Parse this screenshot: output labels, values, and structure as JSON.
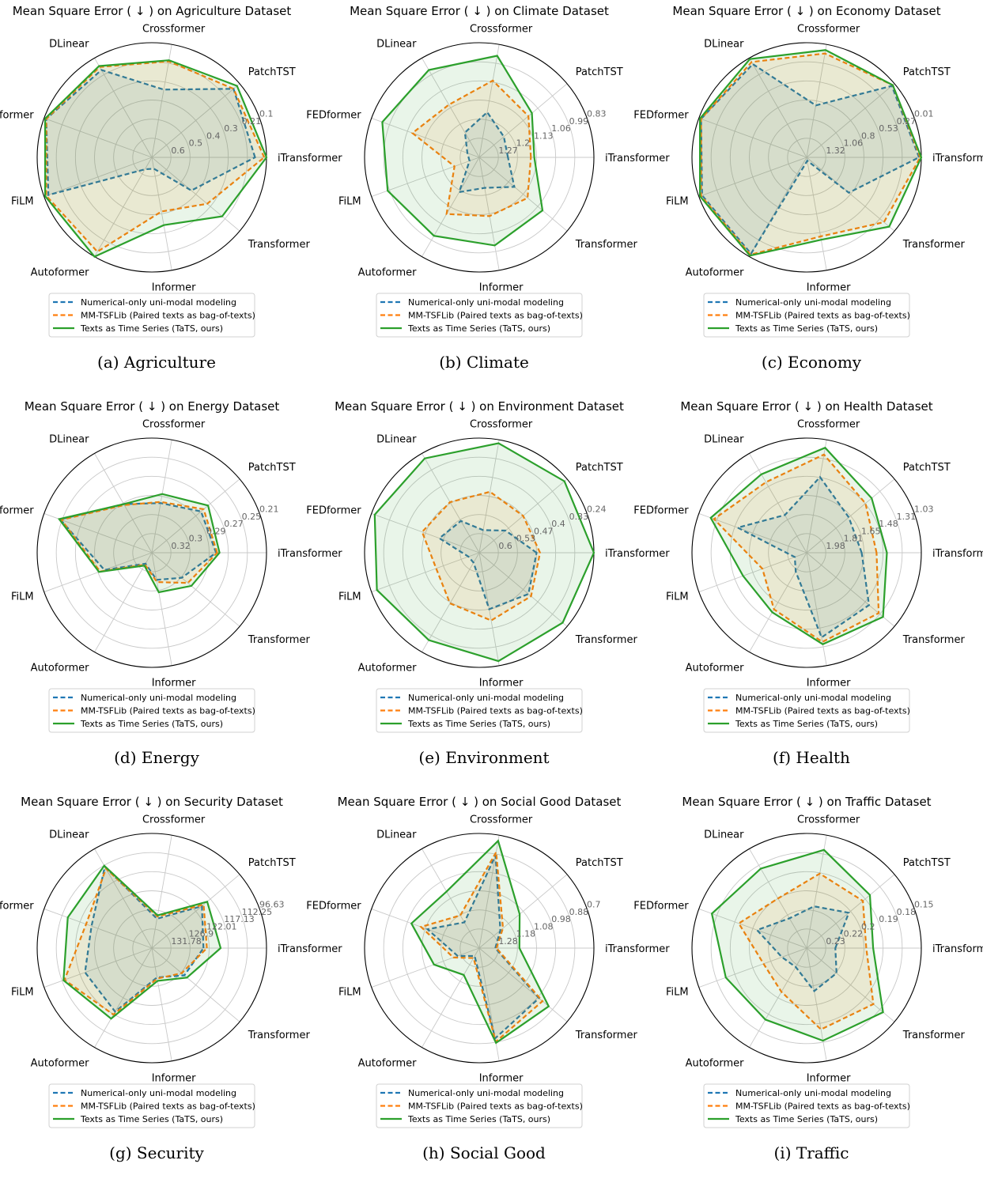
{
  "legend": {
    "items": [
      {
        "label": "Numerical-only uni-modal modeling",
        "color": "#1f77b4",
        "style": "dashed"
      },
      {
        "label": "MM-TSFLib (Paired texts as bag-of-texts)",
        "color": "#ff7f0e",
        "style": "dashed"
      },
      {
        "label": "Texts as Time Series (TaTS, ours)",
        "color": "#2ca02c",
        "style": "solid"
      }
    ]
  },
  "axes": [
    "iTransformer",
    "PatchTST",
    "Crossformer",
    "DLinear",
    "FEDformer",
    "FiLM",
    "Autoformer",
    "Informer",
    "Transformer"
  ],
  "chart_data": [
    {
      "type": "radar",
      "title": "Mean Square Error ( ↓ ) on Agriculture Dataset",
      "caption": "(a)  Agriculture",
      "radial_ticks": [
        "0.6",
        "0.5",
        "0.4",
        "0.3",
        "0.21",
        "0.1"
      ],
      "series": [
        {
          "values": [
            0.9,
            0.93,
            0.6,
            0.88,
            0.98,
            0.96,
            0.12,
            0.1,
            0.45
          ]
        },
        {
          "values": [
            0.98,
            0.93,
            0.85,
            0.91,
            0.98,
            0.98,
            0.95,
            0.48,
            0.63
          ]
        },
        {
          "values": [
            1.0,
            0.97,
            0.86,
            0.92,
            0.99,
            0.99,
            1.0,
            0.6,
            0.8
          ]
        }
      ]
    },
    {
      "type": "radar",
      "title": "Mean Square Error ( ↓ ) on Climate Dataset",
      "caption": "(b)  Climate",
      "radial_ticks": [
        "1.27",
        "1.2",
        "1.13",
        "1.06",
        "0.99",
        "0.83"
      ],
      "series": [
        {
          "values": [
            0.25,
            0.28,
            0.4,
            0.25,
            0.11,
            0.09,
            0.35,
            0.27,
            0.4
          ]
        },
        {
          "values": [
            0.45,
            0.56,
            0.68,
            0.53,
            0.62,
            0.23,
            0.57,
            0.52,
            0.55
          ]
        },
        {
          "values": [
            0.48,
            0.6,
            0.9,
            0.88,
            0.9,
            0.85,
            0.79,
            0.78,
            0.72
          ]
        }
      ]
    },
    {
      "type": "radar",
      "title": "Mean Square Error ( ↓ ) on Economy Dataset",
      "caption": "(c)  Economy",
      "radial_ticks": [
        "1.32",
        "1.06",
        "0.8",
        "0.53",
        "0.27",
        "0.01"
      ],
      "series": [
        {
          "values": [
            0.98,
            0.97,
            0.46,
            0.94,
            0.98,
            0.97,
            0.97,
            0.03,
            0.48
          ]
        },
        {
          "values": [
            0.99,
            0.98,
            0.92,
            0.96,
            0.98,
            0.98,
            0.98,
            0.7,
            0.88
          ]
        },
        {
          "values": [
            1.0,
            0.98,
            0.95,
            0.99,
            0.99,
            0.99,
            0.99,
            0.73,
            0.94
          ]
        }
      ]
    },
    {
      "type": "radar",
      "title": "Mean Square Error ( ↓ ) on Energy Dataset",
      "caption": "(d)  Energy",
      "radial_ticks": [
        "0.32",
        "0.3",
        "0.29",
        "0.27",
        "0.25",
        "0.21"
      ],
      "series": [
        {
          "values": [
            0.56,
            0.56,
            0.44,
            0.49,
            0.85,
            0.44,
            0.11,
            0.24,
            0.34
          ]
        },
        {
          "values": [
            0.57,
            0.59,
            0.45,
            0.48,
            0.84,
            0.48,
            0.12,
            0.26,
            0.41
          ]
        },
        {
          "values": [
            0.59,
            0.64,
            0.52,
            0.49,
            0.86,
            0.49,
            0.13,
            0.35,
            0.45
          ]
        }
      ]
    },
    {
      "type": "radar",
      "title": "Mean Square Error ( ↓ ) on Environment Dataset",
      "caption": "(e)  Environment",
      "radial_ticks": [
        "0.6",
        "0.53",
        "0.47",
        "0.4",
        "0.33",
        "0.24"
      ],
      "series": [
        {
          "values": [
            0.5,
            0.3,
            0.2,
            0.32,
            0.37,
            0.1,
            0.1,
            0.5,
            0.56
          ]
        },
        {
          "values": [
            0.53,
            0.5,
            0.54,
            0.51,
            0.53,
            0.4,
            0.51,
            0.6,
            0.59
          ]
        },
        {
          "values": [
            1.0,
            0.97,
            0.97,
            0.95,
            0.97,
            0.95,
            0.88,
            0.96,
            0.95
          ]
        }
      ]
    },
    {
      "type": "radar",
      "title": "Mean Square Error ( ↓ ) on Health Dataset",
      "caption": "(f)  Health",
      "radial_ticks": [
        "1.98",
        "1.81",
        "1.65",
        "1.48",
        "1.31",
        "1.03"
      ],
      "series": [
        {
          "values": [
            0.48,
            0.48,
            0.67,
            0.38,
            0.64,
            0.11,
            0.19,
            0.75,
            0.71
          ]
        },
        {
          "values": [
            0.61,
            0.67,
            0.87,
            0.71,
            0.86,
            0.41,
            0.57,
            0.79,
            0.82
          ]
        },
        {
          "values": [
            0.7,
            0.74,
            0.93,
            0.79,
            0.89,
            0.59,
            0.6,
            0.81,
            0.87
          ]
        }
      ]
    },
    {
      "type": "radar",
      "title": "Mean Square Error ( ↓ ) on Security Dataset",
      "caption": "(g)  Security",
      "radial_ticks": [
        "131.78",
        "126.9",
        "122.01",
        "117.13",
        "112.25",
        "96.63"
      ],
      "series": [
        {
          "values": [
            0.45,
            0.57,
            0.26,
            0.82,
            0.56,
            0.62,
            0.64,
            0.26,
            0.37
          ]
        },
        {
          "values": [
            0.48,
            0.59,
            0.28,
            0.8,
            0.61,
            0.81,
            0.67,
            0.27,
            0.34
          ]
        },
        {
          "values": [
            0.6,
            0.63,
            0.29,
            0.83,
            0.78,
            0.82,
            0.71,
            0.29,
            0.4
          ]
        }
      ]
    },
    {
      "type": "radar",
      "title": "Mean Square Error ( ↓ ) on Social Good Dataset",
      "caption": "(h)  Social Good",
      "radial_ticks": [
        "1.28",
        "1.18",
        "1.08",
        "0.98",
        "0.88",
        "0.7"
      ],
      "series": [
        {
          "values": [
            0.14,
            0.24,
            0.82,
            0.26,
            0.48,
            0.2,
            0.08,
            0.8,
            0.68
          ]
        },
        {
          "values": [
            0.15,
            0.27,
            0.85,
            0.33,
            0.54,
            0.24,
            0.1,
            0.83,
            0.72
          ]
        },
        {
          "values": [
            0.35,
            0.46,
            0.95,
            0.57,
            0.63,
            0.42,
            0.27,
            0.84,
            0.79
          ]
        }
      ]
    },
    {
      "type": "radar",
      "title": "Mean Square Error ( ↓ ) on Traffic Dataset",
      "caption": "(i)  Traffic",
      "radial_ticks": [
        "0.23",
        "0.22",
        "0.2",
        "0.19",
        "0.18",
        "0.15"
      ],
      "series": [
        {
          "values": [
            0.25,
            0.48,
            0.37,
            0.3,
            0.46,
            0.23,
            0.19,
            0.38,
            0.34
          ]
        },
        {
          "values": [
            0.52,
            0.64,
            0.66,
            0.5,
            0.63,
            0.4,
            0.44,
            0.72,
            0.76
          ]
        },
        {
          "values": [
            0.58,
            0.72,
            0.87,
            0.8,
            0.88,
            0.75,
            0.72,
            0.82,
            0.87
          ]
        }
      ]
    }
  ]
}
